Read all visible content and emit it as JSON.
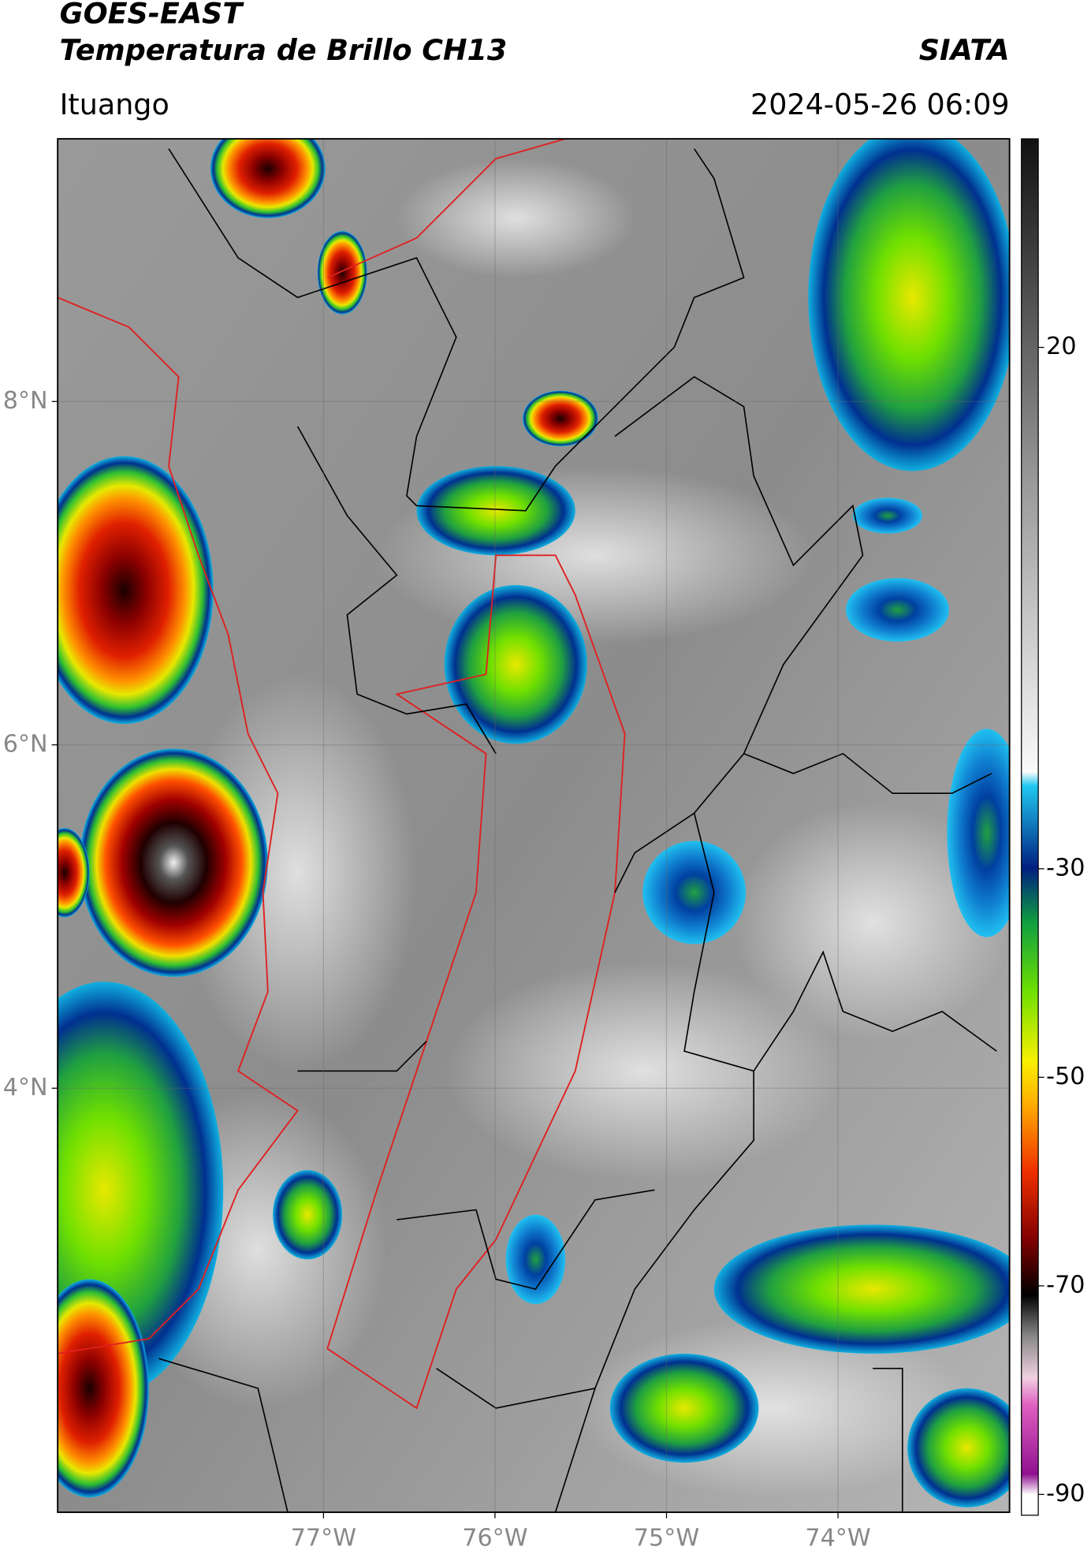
{
  "header": {
    "title": "GOES-EAST",
    "subtitle": "Temperatura de Brillo CH13",
    "brand": "SIATA",
    "location": "Ituango",
    "datetime": "2024-05-26 06:09"
  },
  "map": {
    "xlim": [
      -78.55,
      -73.0
    ],
    "ylim": [
      1.53,
      9.53
    ],
    "xticks": [
      {
        "value": -77,
        "label": "77°W"
      },
      {
        "value": -76,
        "label": "76°W"
      },
      {
        "value": -75,
        "label": "75°W"
      },
      {
        "value": -74,
        "label": "74°W"
      }
    ],
    "yticks": [
      {
        "value": 8,
        "label": "8°N"
      },
      {
        "value": 6,
        "label": "6°N"
      },
      {
        "value": 4,
        "label": "4°N"
      }
    ],
    "colorbar": {
      "lim": [
        -92,
        40
      ],
      "ticks": [
        20,
        -30,
        -50,
        -70,
        -90
      ]
    }
  }
}
